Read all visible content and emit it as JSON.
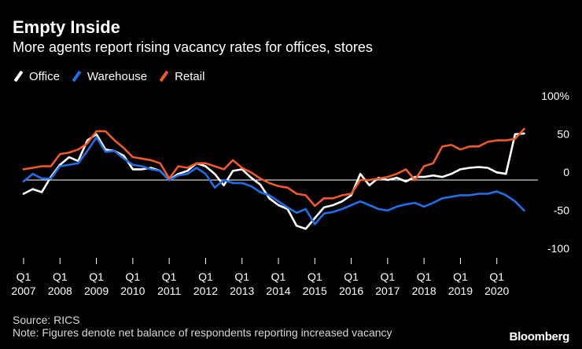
{
  "header": {
    "title": "Empty Inside",
    "subtitle": "More agents report rising vacancy rates for offices, stores"
  },
  "colors": {
    "office": "#ffffff",
    "warehouse": "#1f6fe8",
    "retail": "#f05a28",
    "background": "#000000",
    "axis": "#ffffff"
  },
  "footer": {
    "source": "Source: RICS",
    "note": "Note: Figures denote net balance of respondents reporting increased vacancy",
    "brand": "Bloomberg"
  },
  "chart_data": {
    "type": "line",
    "title": "Empty Inside",
    "subtitle": "More agents report rising vacancy rates for offices, stores",
    "xlabel": "",
    "ylabel": "",
    "ylim": [
      -100,
      100
    ],
    "xlim": [
      2007.0,
      2021.0
    ],
    "yticks": [
      {
        "value": 100,
        "label": "100%"
      },
      {
        "value": 50,
        "label": "50"
      },
      {
        "value": 0,
        "label": "0"
      },
      {
        "value": -50,
        "label": "-50"
      },
      {
        "value": -100,
        "label": "-100"
      }
    ],
    "xticks": [
      {
        "value": 2007,
        "q": "Q1",
        "year": "2007"
      },
      {
        "value": 2008,
        "q": "Q1",
        "year": "2008"
      },
      {
        "value": 2009,
        "q": "Q1",
        "year": "2009"
      },
      {
        "value": 2010,
        "q": "Q1",
        "year": "2010"
      },
      {
        "value": 2011,
        "q": "Q1",
        "year": "2011"
      },
      {
        "value": 2012,
        "q": "Q1",
        "year": "2012"
      },
      {
        "value": 2013,
        "q": "Q1",
        "year": "2013"
      },
      {
        "value": 2014,
        "q": "Q1",
        "year": "2014"
      },
      {
        "value": 2015,
        "q": "Q1",
        "year": "2015"
      },
      {
        "value": 2016,
        "q": "Q1",
        "year": "2016"
      },
      {
        "value": 2017,
        "q": "Q1",
        "year": "2017"
      },
      {
        "value": 2018,
        "q": "Q1",
        "year": "2018"
      },
      {
        "value": 2019,
        "q": "Q1",
        "year": "2019"
      },
      {
        "value": 2020,
        "q": "Q1",
        "year": "2020"
      }
    ],
    "x": [
      2007.0,
      2007.25,
      2007.5,
      2007.75,
      2008.0,
      2008.25,
      2008.5,
      2008.75,
      2009.0,
      2009.25,
      2009.5,
      2009.75,
      2010.0,
      2010.25,
      2010.5,
      2010.75,
      2011.0,
      2011.25,
      2011.5,
      2011.75,
      2012.0,
      2012.25,
      2012.5,
      2012.75,
      2013.0,
      2013.25,
      2013.5,
      2013.75,
      2014.0,
      2014.25,
      2014.5,
      2014.75,
      2015.0,
      2015.25,
      2015.5,
      2015.75,
      2016.0,
      2016.25,
      2016.5,
      2016.75,
      2017.0,
      2017.25,
      2017.5,
      2017.75,
      2018.0,
      2018.25,
      2018.5,
      2018.75,
      2019.0,
      2019.25,
      2019.5,
      2019.75,
      2020.0,
      2020.25,
      2020.5,
      2020.75
    ],
    "series": [
      {
        "name": "Office",
        "color": "#ffffff",
        "values": [
          -18,
          -12,
          -16,
          4,
          20,
          30,
          25,
          52,
          60,
          40,
          38,
          32,
          14,
          14,
          16,
          12,
          0,
          8,
          12,
          22,
          18,
          8,
          -7,
          12,
          14,
          3,
          -6,
          -24,
          -33,
          -38,
          -60,
          -64,
          -50,
          -36,
          -33,
          -28,
          -20,
          8,
          -7,
          3,
          0,
          3,
          -2,
          4,
          4,
          6,
          4,
          8,
          14,
          16,
          17,
          16,
          10,
          8,
          60,
          61
        ]
      },
      {
        "name": "Warehouse",
        "color": "#1f6fe8",
        "values": [
          -2,
          8,
          2,
          2,
          18,
          20,
          22,
          38,
          56,
          37,
          38,
          28,
          20,
          18,
          14,
          12,
          0,
          6,
          8,
          16,
          8,
          -10,
          0,
          -4,
          -4,
          -8,
          -16,
          -20,
          -28,
          -36,
          -43,
          -38,
          -58,
          -44,
          -42,
          -38,
          -33,
          -28,
          -33,
          -38,
          -40,
          -35,
          -32,
          -30,
          -35,
          -30,
          -24,
          -22,
          -20,
          -20,
          -18,
          -18,
          -15,
          -20,
          -28,
          -40
        ]
      },
      {
        "name": "Retail",
        "color": "#f05a28",
        "values": [
          14,
          16,
          18,
          18,
          34,
          36,
          40,
          48,
          64,
          64,
          52,
          42,
          30,
          28,
          26,
          22,
          2,
          18,
          16,
          22,
          22,
          18,
          14,
          26,
          16,
          10,
          2,
          -4,
          -8,
          -10,
          -18,
          -20,
          -34,
          -24,
          -24,
          -20,
          -18,
          0,
          0,
          2,
          4,
          8,
          14,
          0,
          18,
          22,
          44,
          46,
          40,
          44,
          44,
          50,
          52,
          52,
          54,
          67
        ]
      }
    ]
  }
}
